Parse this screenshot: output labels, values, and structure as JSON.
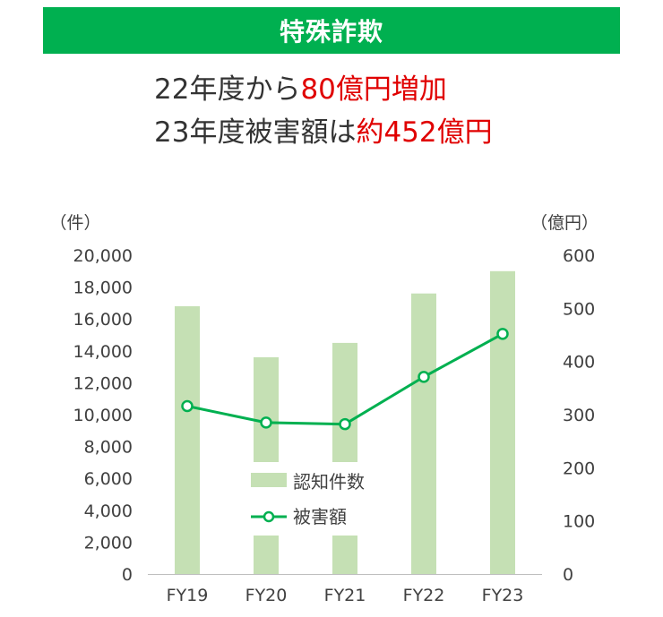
{
  "banner": {
    "title": "特殊詐欺"
  },
  "headline": {
    "line1_plain": "22年度から",
    "line1_highlight": "80億円増加",
    "line2_plain": "23年度被害額は",
    "line2_highlight": "約452億円"
  },
  "colors": {
    "banner": "#00b050",
    "highlight": "#e00000",
    "bar": "#c5e0b4",
    "line": "#00b050"
  },
  "chart_data": {
    "type": "bar+line",
    "categories": [
      "FY19",
      "FY20",
      "FY21",
      "FY22",
      "FY23"
    ],
    "series": [
      {
        "name": "認知件数",
        "type": "bar",
        "axis": "left",
        "values": [
          16800,
          13600,
          14500,
          17600,
          19000
        ]
      },
      {
        "name": "被害額",
        "type": "line",
        "axis": "right",
        "values": [
          316,
          285,
          282,
          371,
          452
        ]
      }
    ],
    "left_axis": {
      "unit_label": "（件）",
      "min": 0,
      "max": 20000,
      "step": 2000,
      "ticks": [
        "0",
        "2,000",
        "4,000",
        "6,000",
        "8,000",
        "10,000",
        "12,000",
        "14,000",
        "16,000",
        "18,000",
        "20,000"
      ]
    },
    "right_axis": {
      "unit_label": "（億円）",
      "min": 0,
      "max": 600,
      "step": 100,
      "ticks": [
        "0",
        "100",
        "200",
        "300",
        "400",
        "500",
        "600"
      ]
    },
    "legend_position": "center",
    "grid": false
  }
}
